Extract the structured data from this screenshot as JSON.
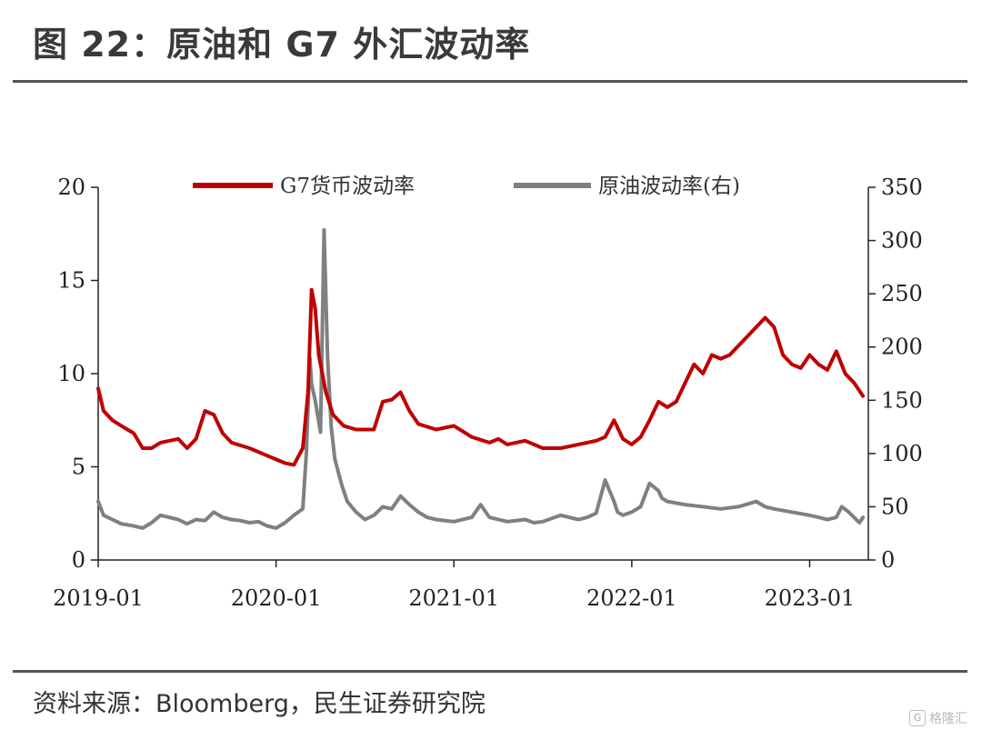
{
  "header": {
    "title": "图 22：原油和 G7 外汇波动率"
  },
  "footer": {
    "source": "资料来源：Bloomberg，民生证券研究院"
  },
  "watermark": {
    "text": "格隆汇"
  },
  "colors": {
    "g7": "#c00000",
    "oil": "#808080",
    "axis": "#222222"
  },
  "chart_data": {
    "type": "line",
    "title": "",
    "x_tick_labels": [
      "2019-01",
      "2020-01",
      "2021-01",
      "2022-01",
      "2023-01"
    ],
    "x_range": [
      2019.0,
      2023.33
    ],
    "y_left": {
      "range": [
        0,
        20
      ],
      "ticks": [
        0,
        5,
        10,
        15,
        20
      ],
      "tick_labels": [
        "0",
        "5",
        "10",
        "15",
        "20"
      ]
    },
    "y_right": {
      "range": [
        0,
        350
      ],
      "ticks": [
        0,
        50,
        100,
        150,
        200,
        250,
        300,
        350
      ],
      "tick_labels": [
        "0",
        "50",
        "100",
        "150",
        "200",
        "250",
        "300",
        "350"
      ]
    },
    "legend": {
      "position": "top",
      "entries": [
        "G7货币波动率",
        "原油波动率(右)"
      ]
    },
    "series": [
      {
        "name": "G7货币波动率",
        "axis": "left",
        "color": "#c00000",
        "x": [
          2019.0,
          2019.03,
          2019.08,
          2019.13,
          2019.2,
          2019.25,
          2019.3,
          2019.35,
          2019.45,
          2019.5,
          2019.55,
          2019.6,
          2019.65,
          2019.7,
          2019.75,
          2019.85,
          2019.95,
          2020.05,
          2020.1,
          2020.15,
          2020.18,
          2020.2,
          2020.22,
          2020.24,
          2020.28,
          2020.32,
          2020.38,
          2020.45,
          2020.55,
          2020.6,
          2020.65,
          2020.7,
          2020.75,
          2020.8,
          2020.9,
          2021.0,
          2021.1,
          2021.2,
          2021.25,
          2021.3,
          2021.4,
          2021.5,
          2021.6,
          2021.7,
          2021.8,
          2021.85,
          2021.9,
          2021.95,
          2022.0,
          2022.05,
          2022.1,
          2022.15,
          2022.2,
          2022.25,
          2022.3,
          2022.35,
          2022.4,
          2022.45,
          2022.5,
          2022.55,
          2022.6,
          2022.65,
          2022.7,
          2022.75,
          2022.8,
          2022.85,
          2022.9,
          2022.95,
          2023.0,
          2023.05,
          2023.1,
          2023.15,
          2023.2,
          2023.25,
          2023.3
        ],
        "values": [
          9.2,
          8.0,
          7.5,
          7.2,
          6.8,
          6.0,
          6.0,
          6.3,
          6.5,
          6.0,
          6.5,
          8.0,
          7.8,
          6.8,
          6.3,
          6.0,
          5.6,
          5.2,
          5.1,
          6.0,
          9.0,
          14.5,
          13.5,
          11.0,
          9.0,
          7.8,
          7.2,
          7.0,
          7.0,
          8.5,
          8.6,
          9.0,
          8.0,
          7.3,
          7.0,
          7.2,
          6.6,
          6.3,
          6.5,
          6.2,
          6.4,
          6.0,
          6.0,
          6.2,
          6.4,
          6.6,
          7.5,
          6.5,
          6.2,
          6.6,
          7.5,
          8.5,
          8.2,
          8.5,
          9.5,
          10.5,
          10.0,
          11.0,
          10.8,
          11.0,
          11.5,
          12.0,
          12.5,
          13.0,
          12.5,
          11.0,
          10.5,
          10.3,
          11.0,
          10.5,
          10.2,
          11.2,
          10.0,
          9.5,
          8.8
        ]
      },
      {
        "name": "原油波动率(右)",
        "axis": "right",
        "color": "#808080",
        "x": [
          2019.0,
          2019.03,
          2019.08,
          2019.13,
          2019.2,
          2019.25,
          2019.3,
          2019.35,
          2019.45,
          2019.5,
          2019.55,
          2019.6,
          2019.65,
          2019.7,
          2019.75,
          2019.8,
          2019.85,
          2019.9,
          2019.95,
          2020.0,
          2020.05,
          2020.1,
          2020.15,
          2020.17,
          2020.19,
          2020.2,
          2020.22,
          2020.25,
          2020.27,
          2020.29,
          2020.31,
          2020.33,
          2020.37,
          2020.4,
          2020.45,
          2020.5,
          2020.55,
          2020.6,
          2020.65,
          2020.7,
          2020.75,
          2020.8,
          2020.85,
          2020.9,
          2021.0,
          2021.1,
          2021.15,
          2021.2,
          2021.3,
          2021.4,
          2021.45,
          2021.5,
          2021.6,
          2021.7,
          2021.75,
          2021.8,
          2021.85,
          2021.9,
          2021.92,
          2021.95,
          2022.0,
          2022.05,
          2022.1,
          2022.15,
          2022.17,
          2022.2,
          2022.3,
          2022.4,
          2022.5,
          2022.6,
          2022.7,
          2022.75,
          2022.8,
          2022.9,
          2023.0,
          2023.05,
          2023.1,
          2023.15,
          2023.18,
          2023.22,
          2023.28,
          2023.3
        ],
        "values": [
          55,
          42,
          38,
          34,
          32,
          30,
          35,
          42,
          38,
          34,
          38,
          37,
          45,
          40,
          38,
          37,
          35,
          36,
          32,
          30,
          35,
          42,
          48,
          100,
          190,
          165,
          150,
          120,
          310,
          190,
          125,
          95,
          70,
          55,
          45,
          38,
          42,
          50,
          48,
          60,
          52,
          45,
          40,
          38,
          36,
          40,
          52,
          40,
          36,
          38,
          35,
          36,
          42,
          38,
          40,
          44,
          75,
          55,
          45,
          42,
          45,
          50,
          72,
          65,
          58,
          55,
          52,
          50,
          48,
          50,
          55,
          50,
          48,
          45,
          42,
          40,
          38,
          40,
          50,
          45,
          35,
          40
        ]
      }
    ]
  }
}
